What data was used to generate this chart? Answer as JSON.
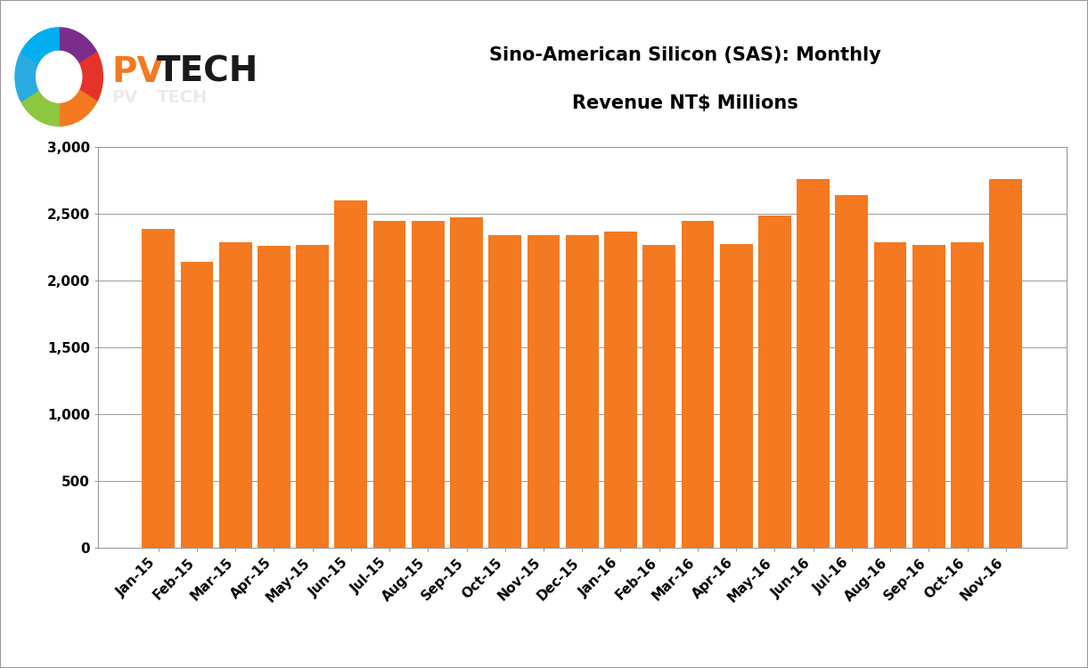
{
  "title_line1": "Sino-American Silicon (SAS): Monthly",
  "title_line2": "Revenue NT$ Millions",
  "categories": [
    "Jan-15",
    "Feb-15",
    "Mar-15",
    "Apr-15",
    "May-15",
    "Jun-15",
    "Jul-15",
    "Aug-15",
    "Sep-15",
    "Oct-15",
    "Nov-15",
    "Dec-15",
    "Jan-16",
    "Feb-16",
    "Mar-16",
    "Apr-16",
    "May-16",
    "Jun-16",
    "Jul-16",
    "Aug-16",
    "Sep-16",
    "Oct-16",
    "Nov-16"
  ],
  "values": [
    2390,
    2140,
    2285,
    2260,
    2265,
    2600,
    2450,
    2450,
    2475,
    2340,
    2340,
    2340,
    2370,
    2270,
    2450,
    2275,
    2490,
    2760,
    2640,
    2285,
    2270,
    2285,
    2760
  ],
  "bar_color": "#F47920",
  "ylim": [
    0,
    3000
  ],
  "yticks": [
    0,
    500,
    1000,
    1500,
    2000,
    2500,
    3000
  ],
  "background_color": "#FFFFFF",
  "title_fontsize": 15,
  "tick_fontsize": 11,
  "grid_color": "#999999",
  "border_color": "#999999",
  "logo_circle_colors": [
    "#7B2D8B",
    "#E63329",
    "#F47920",
    "#8DC63F",
    "#00AEEF",
    "#29ABE2"
  ],
  "pv_color": "#F47920",
  "tech_color": "#1A1A1A"
}
